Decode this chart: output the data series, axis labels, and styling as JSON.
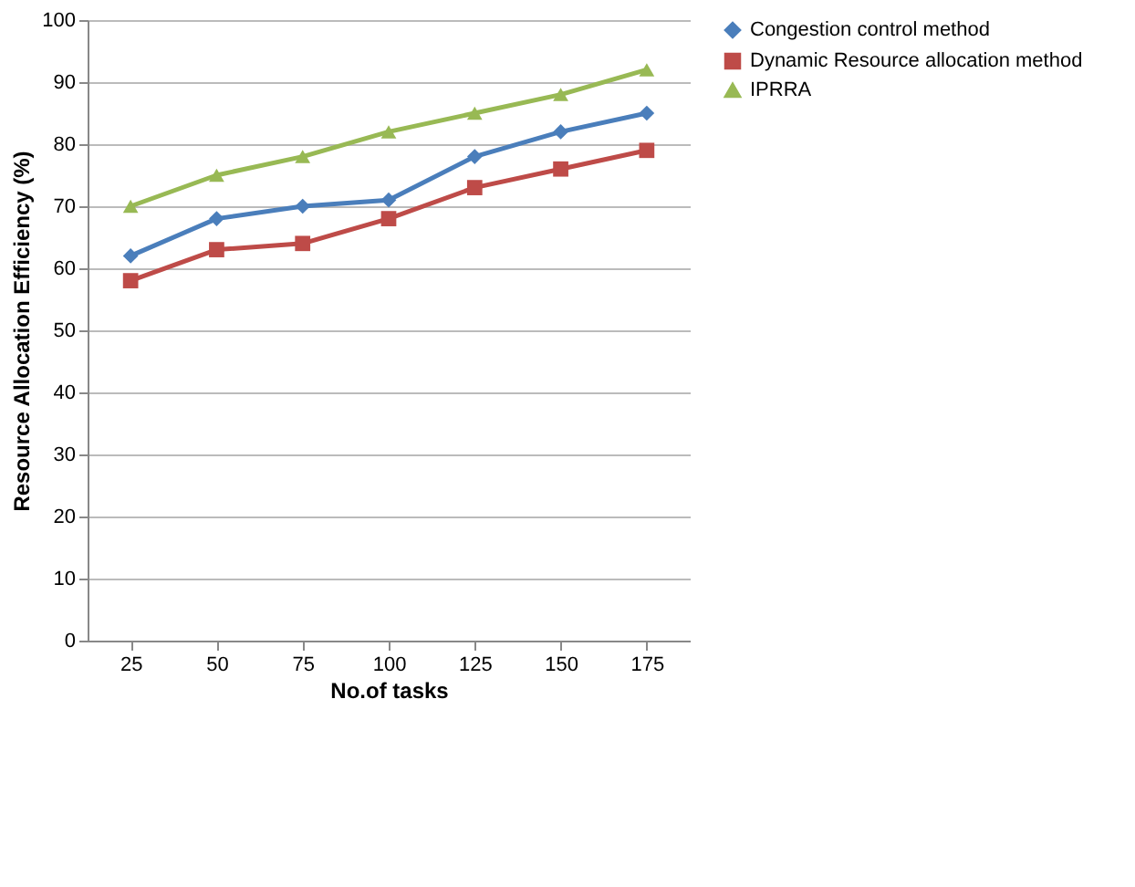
{
  "chart_data": {
    "type": "line",
    "xlabel": "No.of tasks",
    "ylabel": "Resource Allocation Efficiency (%)",
    "categories": [
      "25",
      "50",
      "75",
      "100",
      "125",
      "150",
      "175"
    ],
    "series": [
      {
        "name": "Congestion control method",
        "color": "#4a7ebb",
        "marker": "diamond",
        "values": [
          62,
          68,
          70,
          71,
          78,
          82,
          85
        ]
      },
      {
        "name": "Dynamic Resource allocation method",
        "color": "#be4b48",
        "marker": "square",
        "values": [
          58,
          63,
          64,
          68,
          73,
          76,
          79
        ]
      },
      {
        "name": "IPRRA",
        "color": "#98b954",
        "marker": "triangle",
        "values": [
          70,
          75,
          78,
          82,
          85,
          88,
          92
        ]
      }
    ],
    "ylim": [
      0,
      100
    ],
    "yticks": [
      0,
      10,
      20,
      30,
      40,
      50,
      60,
      70,
      80,
      90,
      100
    ],
    "grid": "y",
    "legend": "right"
  }
}
